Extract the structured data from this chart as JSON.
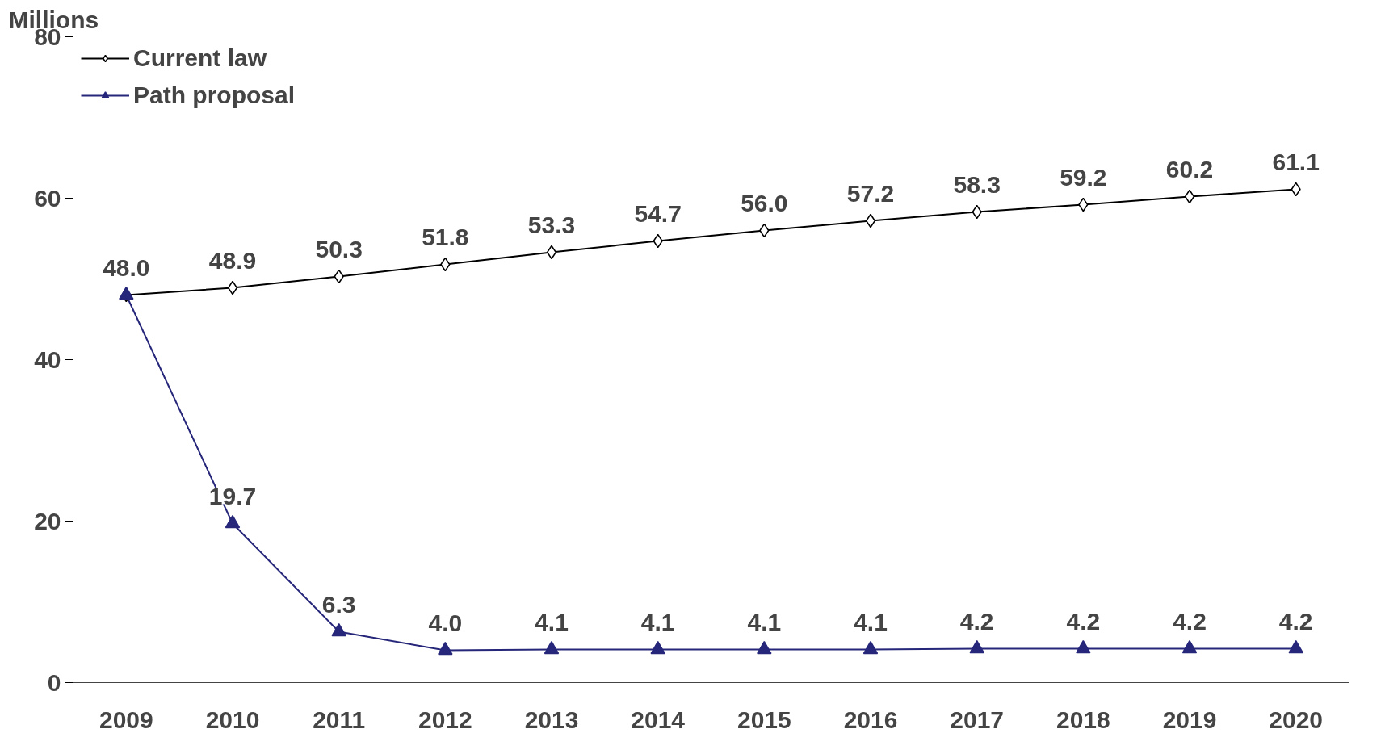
{
  "chart_data": {
    "type": "line",
    "ylabel": "Millions",
    "categories": [
      "2009",
      "2010",
      "2011",
      "2012",
      "2013",
      "2014",
      "2015",
      "2016",
      "2017",
      "2018",
      "2019",
      "2020"
    ],
    "ylim": [
      0,
      80
    ],
    "yticks": [
      0,
      20,
      40,
      60,
      80
    ],
    "grid": false,
    "legend": "top left",
    "line_style": "solid",
    "series": [
      {
        "name": "Current law",
        "color": "#000000",
        "marker": "diamond",
        "values": [
          48.0,
          48.9,
          50.3,
          51.8,
          53.3,
          54.7,
          56.0,
          57.2,
          58.3,
          59.2,
          60.2,
          61.1
        ],
        "value_labels": [
          "48.0",
          "48.9",
          "50.3",
          "51.8",
          "53.3",
          "54.7",
          "56.0",
          "57.2",
          "58.3",
          "59.2",
          "60.2",
          "61.1"
        ]
      },
      {
        "name": "Path proposal",
        "color": "#26267a",
        "marker": "triangle",
        "values": [
          48.0,
          19.7,
          6.3,
          4.0,
          4.1,
          4.1,
          4.1,
          4.1,
          4.2,
          4.2,
          4.2,
          4.2
        ],
        "value_labels": [
          null,
          "19.7",
          "6.3",
          "4.0",
          "4.1",
          "4.1",
          "4.1",
          "4.1",
          "4.2",
          "4.2",
          "4.2",
          "4.2"
        ]
      }
    ]
  }
}
